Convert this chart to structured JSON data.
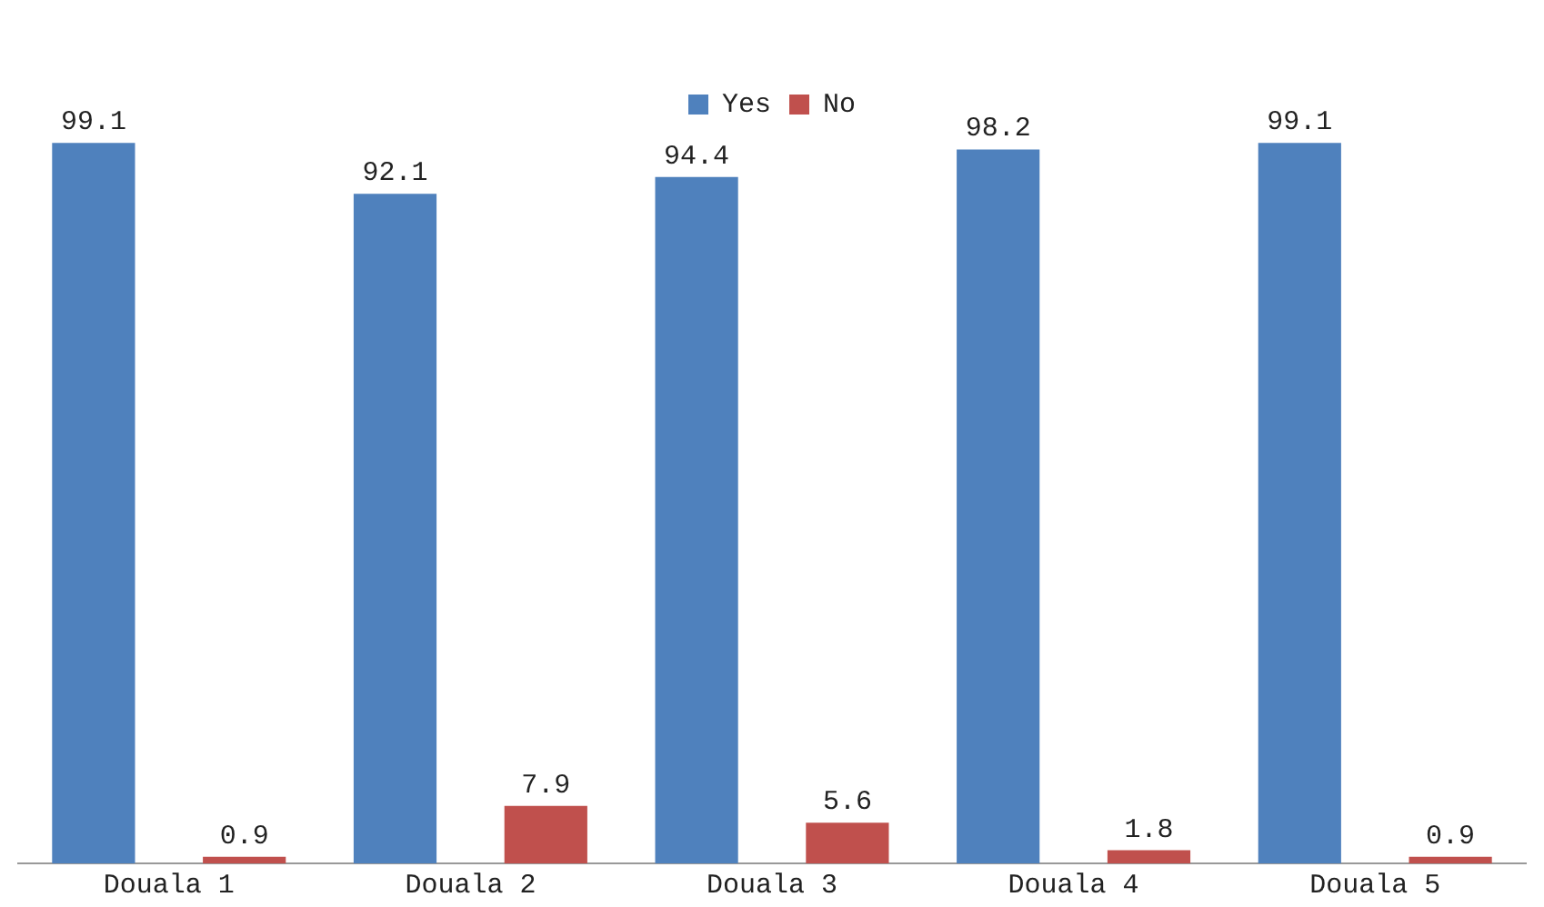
{
  "chart_data": {
    "type": "bar",
    "categories": [
      "Douala 1",
      "Douala 2",
      "Douala 3",
      "Douala 4",
      "Douala 5"
    ],
    "series": [
      {
        "name": "Yes",
        "color": "#4f81bd",
        "values": [
          99.1,
          92.1,
          94.4,
          98.2,
          99.1
        ]
      },
      {
        "name": "No",
        "color": "#c0504d",
        "values": [
          0.9,
          7.9,
          5.6,
          1.8,
          0.9
        ]
      }
    ],
    "data_labels": true,
    "legend": "top",
    "grid": false,
    "tick_labels": "x"
  }
}
